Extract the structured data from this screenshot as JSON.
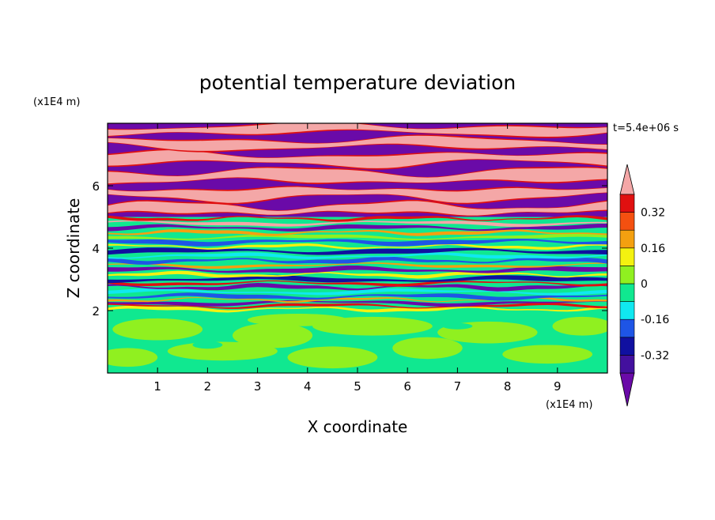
{
  "chart_data": {
    "type": "heatmap",
    "title": "potential temperature deviation",
    "xlabel": "X coordinate",
    "ylabel": "Z coordinate",
    "x_unit": "(x1E4 m)",
    "y_unit": "(x1E4 m)",
    "time_label": "t=5.4e+06 s",
    "xlim": [
      0,
      10
    ],
    "ylim": [
      0,
      8
    ],
    "x_ticks": [
      1,
      2,
      3,
      4,
      5,
      6,
      7,
      8,
      9
    ],
    "y_ticks": [
      2,
      4,
      6
    ],
    "colorbar": {
      "levels": [
        -0.4,
        -0.32,
        -0.24,
        -0.16,
        -0.08,
        0,
        0.08,
        0.16,
        0.24,
        0.32,
        0.4
      ],
      "tick_labels": [
        "0.32",
        "0.16",
        "0",
        "-0.16",
        "-0.32"
      ],
      "tick_values": [
        0.32,
        0.16,
        0,
        -0.16,
        -0.32
      ],
      "below_color": "#6a0aa8",
      "above_color": "#f4a7a7",
      "colors": [
        "#43109e",
        "#1010a0",
        "#1e55e6",
        "#10e8f0",
        "#10e890",
        "#90f020",
        "#f4f210",
        "#f4a010",
        "#f45010",
        "#e01010"
      ]
    },
    "regions": [
      {
        "name": "upper",
        "z_range": [
          5.2,
          8.0
        ],
        "pattern": "alternating layers of strongly positive (pink) and strongly negative (purple) deviation"
      },
      {
        "name": "transition",
        "z_range": [
          2.0,
          5.2
        ],
        "pattern": "thin turbulent layers spanning the full color range"
      },
      {
        "name": "lower",
        "z_range": [
          0.0,
          2.0
        ],
        "pattern": "near-zero deviation, green with light green patches"
      }
    ]
  }
}
